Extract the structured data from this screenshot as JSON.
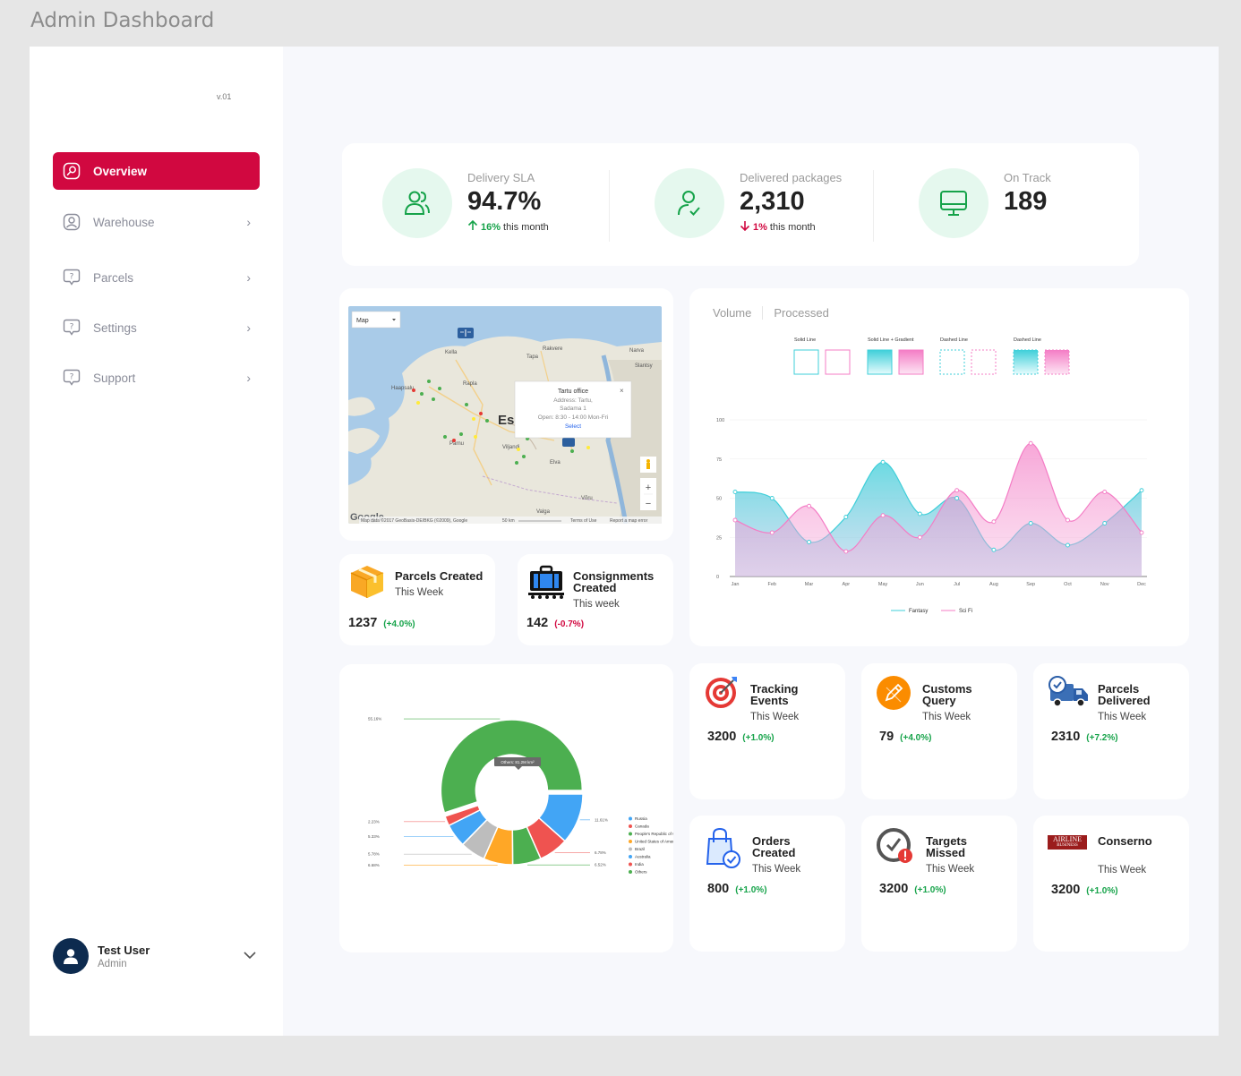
{
  "page_title": "Admin Dashboard",
  "version": "v.01",
  "nav": [
    {
      "label": "Overview",
      "active": true,
      "icon": "overview-icon"
    },
    {
      "label": "Warehouse",
      "active": false,
      "icon": "warehouse-icon"
    },
    {
      "label": "Parcels",
      "active": false,
      "icon": "parcels-icon"
    },
    {
      "label": "Settings",
      "active": false,
      "icon": "settings-icon"
    },
    {
      "label": "Support",
      "active": false,
      "icon": "support-icon"
    }
  ],
  "user": {
    "name": "Test User",
    "role": "Admin"
  },
  "kpis": [
    {
      "label": "Delivery SLA",
      "value": "94.7%",
      "change": "16%",
      "change_text": "this month",
      "direction": "up"
    },
    {
      "label": "Delivered packages",
      "value": "2,310",
      "change": "1%",
      "change_text": "this month",
      "direction": "down"
    },
    {
      "label": "On Track",
      "value": "189"
    }
  ],
  "map": {
    "type_selector": "Map",
    "city_label": "Es",
    "places": [
      "Kella",
      "Rakvere",
      "Narva",
      "Tapa",
      "Rapla",
      "Haapsalu",
      "Pärnu",
      "Viljandi",
      "Elva",
      "Võru",
      "Valga",
      "Slantsy"
    ],
    "popup": {
      "title": "Tartu office",
      "address_label": "Address: Tartu,",
      "address_line": "Sadama 1",
      "hours": "Open: 8:30 - 14:00 Mon-Fri",
      "action": "Select"
    },
    "attribution": "Map data ©2017 GeoBasis-DE/BKG (©2009), Google",
    "scale": "50 km",
    "terms": "Terms of Use",
    "report": "Report a map error",
    "logo": "Google"
  },
  "parcels_created": {
    "title": "Parcels Created",
    "sub": "This Week",
    "value": "1237",
    "change": "(+4.0%)"
  },
  "consignments_created": {
    "title_line1": "Consignments",
    "title_line2": "Created",
    "sub": "This week",
    "value": "142",
    "change": "(-0.7%)"
  },
  "volume_chart": {
    "tabs": [
      "Volume",
      "Processed"
    ],
    "styles": [
      "Solid Line",
      "Solid Line + Gradient",
      "Dashed Line",
      "Dashed Line"
    ]
  },
  "chart_data": [
    {
      "type": "area",
      "categories": [
        "Jan",
        "Feb",
        "Mar",
        "Apr",
        "May",
        "Jun",
        "Jul",
        "Aug",
        "Sep",
        "Oct",
        "Nov",
        "Dec"
      ],
      "series": [
        {
          "name": "Fantasy",
          "color": "#3fcfd9",
          "values": [
            54,
            50,
            22,
            38,
            73,
            40,
            50,
            17,
            34,
            20,
            34,
            55
          ]
        },
        {
          "name": "Sci Fi",
          "color": "#f47cc5",
          "values": [
            36,
            28,
            45,
            16,
            39,
            25,
            55,
            35,
            85,
            36,
            54,
            28
          ]
        }
      ],
      "yticks": [
        0,
        25,
        50,
        75,
        100
      ],
      "ylim": [
        0,
        100
      ]
    },
    {
      "type": "pie",
      "labels": [
        "Russia",
        "Canada",
        "People's Republic of China",
        "United States of America",
        "Brazil",
        "Australia",
        "India",
        "Others"
      ],
      "values": [
        11.61,
        6.78,
        6.52,
        6.68,
        5.78,
        5.33,
        2.23,
        55.16
      ],
      "colors": [
        "#42a5f5",
        "#ef5350",
        "#4caf50",
        "#ffa726",
        "#bdbdbd",
        "#42a5f5",
        "#ef5350",
        "#4caf50"
      ],
      "slice_labels": [
        "11.61%",
        "6.78%",
        "6.52%",
        "6.68%",
        "5.78%",
        "5.33%",
        "2.23%",
        "55.16%"
      ],
      "tooltip": "Others: 81.2M km²"
    }
  ],
  "tiles": [
    {
      "title_line1": "Tracking",
      "title_line2": "Events",
      "sub": "This Week",
      "value": "3200",
      "change": "(+1.0%)",
      "icon": "target-icon"
    },
    {
      "title_line1": "Customs",
      "title_line2": "Query",
      "sub": "This Week",
      "value": "79",
      "change": "(+4.0%)",
      "icon": "edit-icon"
    },
    {
      "title_line1": "Parcels",
      "title_line2": "Delivered",
      "sub": "This Week",
      "value": "2310",
      "change": "(+7.2%)",
      "icon": "truck-icon"
    },
    {
      "title_line1": "Orders",
      "title_line2": "Created",
      "sub": "This Week",
      "value": "800",
      "change": "(+1.0%)",
      "icon": "shopping-bag-icon"
    },
    {
      "title_line1": "Targets",
      "title_line2": "Missed",
      "sub": "This Week",
      "value": "3200",
      "change": "(+1.0%)",
      "icon": "clock-alert-icon"
    },
    {
      "title_line1": "Conserno",
      "title_line2": "",
      "sub": "This Week",
      "value": "3200",
      "change": "(+1.0%)",
      "icon": "airline-logo",
      "logo_line1": "AIRLINE",
      "logo_line2": "BUSINESS"
    }
  ]
}
